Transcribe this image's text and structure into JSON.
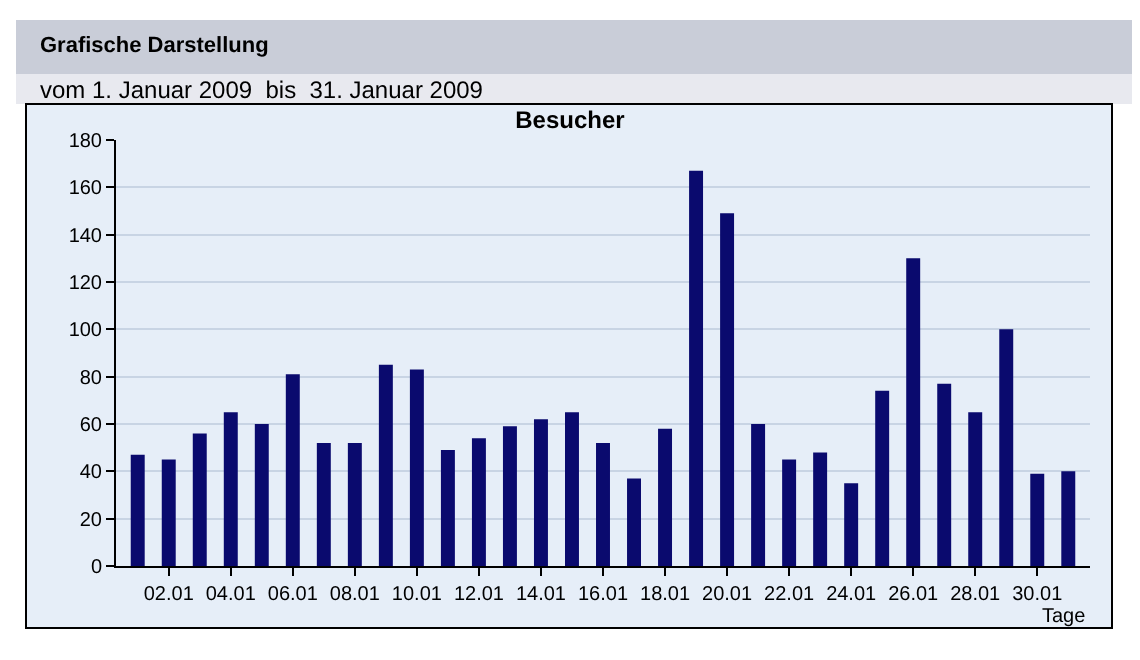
{
  "chart_data": {
    "type": "bar",
    "title": "Besucher",
    "xlabel": "Tage",
    "annotations": [
      "Grafische Darstellung",
      "vom 1. Januar 2009  bis  31. Januar 2009"
    ],
    "categories": [
      null,
      "02.01",
      null,
      "04.01",
      null,
      "06.01",
      null,
      "08.01",
      null,
      "10.01",
      null,
      "12.01",
      null,
      "14.01",
      null,
      "16.01",
      null,
      "18.01",
      null,
      "20.01",
      null,
      "22.01",
      null,
      "24.01",
      null,
      "26.01",
      null,
      "28.01",
      null,
      "30.01",
      null
    ],
    "values": [
      47,
      45,
      56,
      65,
      60,
      81,
      52,
      52,
      85,
      83,
      49,
      54,
      59,
      62,
      65,
      52,
      37,
      58,
      167,
      149,
      60,
      45,
      48,
      35,
      74,
      130,
      77,
      65,
      100,
      39,
      40
    ],
    "color": "#0a0a6e",
    "ylim": [
      0,
      180
    ],
    "yticks": [
      0,
      20,
      40,
      60,
      80,
      100,
      120,
      140,
      160,
      180
    ],
    "grid": "y"
  }
}
